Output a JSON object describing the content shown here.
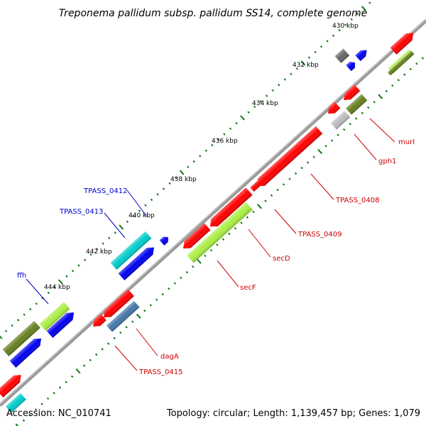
{
  "title": "Treponema pallidum subsp. pallidum SS14, complete genome",
  "footer": {
    "accession": "Accession: NC_010741",
    "summary": "Topology: circular; Length: 1,139,457 bp; Genes: 1,079"
  },
  "ticks": [
    "430 kbp",
    "432 kbp",
    "434 kbp",
    "436 kbp",
    "438 kbp",
    "440 kbp",
    "442 kbp",
    "444 kbp"
  ],
  "labels": {
    "murI": "murI",
    "gph1": "gph1",
    "TPASS_0408": "TPASS_0408",
    "TPASS_0409": "TPASS_0409",
    "secD": "secD",
    "secF": "secF",
    "dagA": "dagA",
    "TPASS_0415": "TPASS_0415",
    "TPASS_0412": "TPASS_0412",
    "TPASS_0413": "TPASS_0413",
    "ffh": "ffh"
  },
  "colors": {
    "red": "#ff0000",
    "blue": "#0000ee",
    "cyan": "#00cccc",
    "olive": "#667f20",
    "lime": "#aaee44",
    "steel": "#4477aa",
    "gray": "#666666",
    "lightgray": "#bbbbbb",
    "tick": "#117711",
    "backbone": "#888888"
  }
}
